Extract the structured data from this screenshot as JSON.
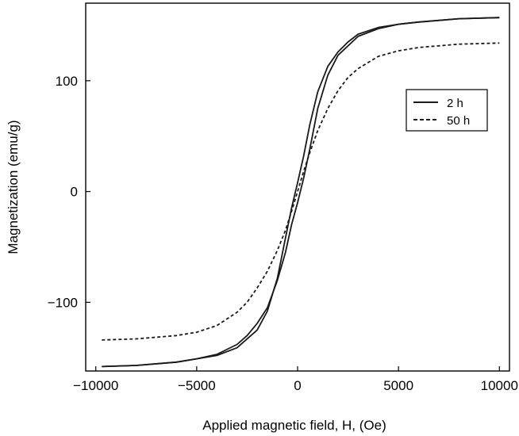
{
  "chart_data": {
    "type": "line",
    "xlabel": "Applied magnetic field, H, (Oe)",
    "ylabel": "Magnetization (emu/g)",
    "xlim": [
      -10500,
      10500
    ],
    "ylim": [
      -162,
      170
    ],
    "x_ticks": [
      {
        "value": -10000,
        "label": "−10000"
      },
      {
        "value": -5000,
        "label": "−5000"
      },
      {
        "value": 0,
        "label": "0"
      },
      {
        "value": 5000,
        "label": "5000"
      },
      {
        "value": 10000,
        "label": "10000"
      }
    ],
    "y_ticks": [
      {
        "value": -100,
        "label": "−100"
      },
      {
        "value": 0,
        "label": "0"
      },
      {
        "value": 100,
        "label": "100"
      }
    ],
    "grid": false,
    "legend_position": "top-right",
    "series": [
      {
        "name": "2 h",
        "style": "solid",
        "color": "#1a1a1a",
        "branches": [
          {
            "x": [
              -9700,
              -8000,
              -6000,
              -5000,
              -4000,
              -3000,
              -2500,
              -2000,
              -1500,
              -1000,
              -600,
              -300,
              0,
              300,
              600,
              1000,
              1500,
              2000,
              3000,
              4000,
              5000,
              6000,
              8000,
              10000
            ],
            "y": [
              -158,
              -157,
              -154,
              -151,
              -147,
              -138,
              -130,
              -119,
              -105,
              -80,
              -55,
              -30,
              -10,
              12,
              38,
              75,
              105,
              123,
              140,
              147,
              151,
              153,
              156,
              157
            ]
          },
          {
            "x": [
              10000,
              8000,
              6000,
              5000,
              4000,
              3000,
              2500,
              2000,
              1500,
              1000,
              600,
              300,
              0,
              -300,
              -600,
              -1000,
              -1500,
              -2000,
              -3000,
              -4000,
              -5000,
              -6000,
              -8000,
              -9700
            ],
            "y": [
              157,
              156,
              153,
              151,
              148,
              142,
              135,
              126,
              113,
              90,
              60,
              32,
              8,
              -15,
              -42,
              -78,
              -108,
              -125,
              -141,
              -148,
              -151,
              -154,
              -157,
              -158
            ]
          }
        ]
      },
      {
        "name": "50 h",
        "style": "dashed",
        "color": "#1a1a1a",
        "branches": [
          {
            "x": [
              -9700,
              -8000,
              -6000,
              -5000,
              -4000,
              -3000,
              -2500,
              -2000,
              -1500,
              -1000,
              -600,
              -300,
              0,
              300,
              600,
              1000,
              1500,
              2000,
              2500,
              3000,
              4000,
              5000,
              6000,
              8000,
              10000
            ],
            "y": [
              -134,
              -133,
              -130,
              -127,
              -121,
              -109,
              -100,
              -87,
              -72,
              -53,
              -35,
              -18,
              0,
              18,
              35,
              55,
              75,
              91,
              103,
              111,
              122,
              127,
              130,
              133,
              134
            ]
          }
        ]
      }
    ]
  }
}
